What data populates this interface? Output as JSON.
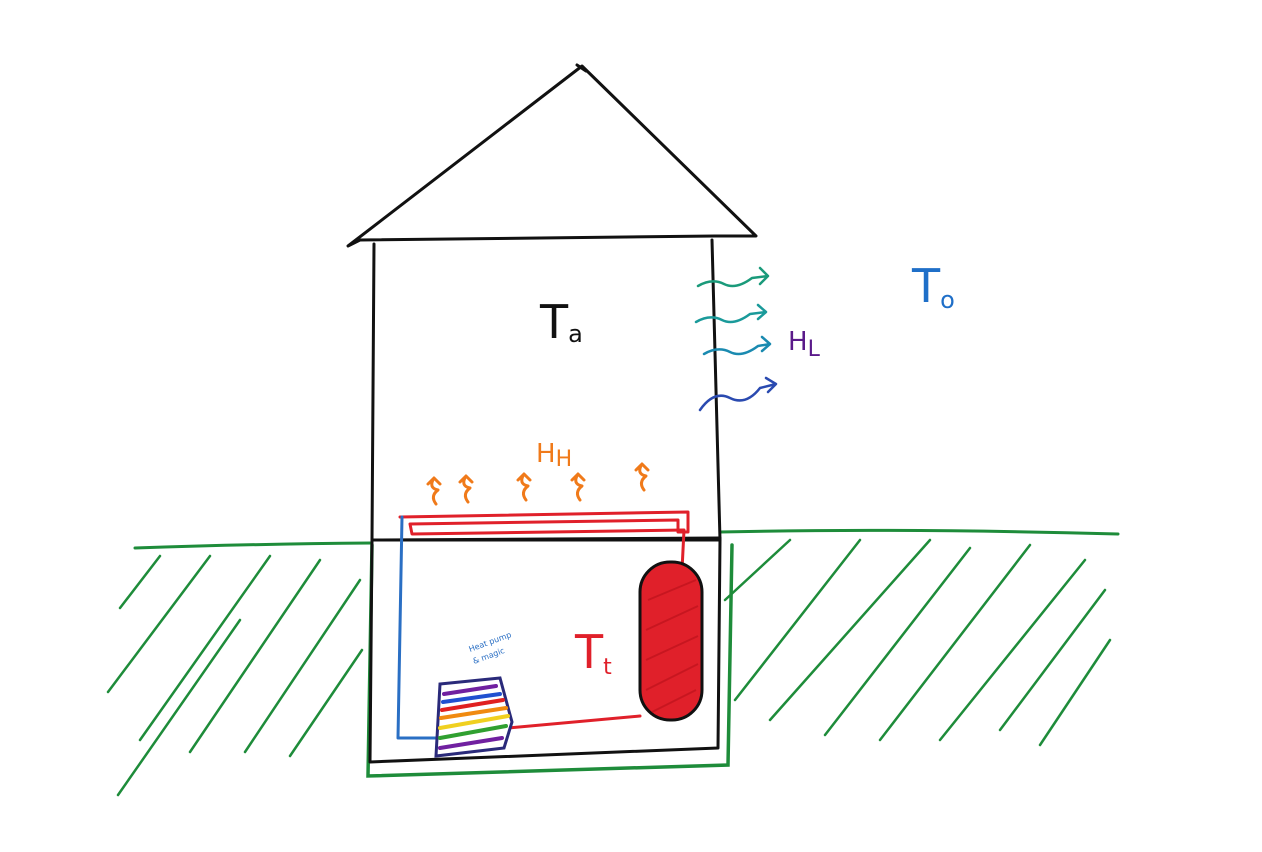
{
  "labels": {
    "indoor_temp": {
      "main": "T",
      "sub": "a"
    },
    "outdoor_temp": {
      "main": "T",
      "sub": "o"
    },
    "tank_temp": {
      "main": "T",
      "sub": "t"
    },
    "heat_loss": {
      "main": "H",
      "sub": "L"
    },
    "heat_supply": {
      "main": "H",
      "sub": "H"
    },
    "heat_pump_note": [
      "Heat pump",
      "& magic"
    ]
  },
  "colors": {
    "ink": "#111111",
    "ground": "#1e8c3a",
    "hot_pipe": "#e0202a",
    "cold_pipe": "#2a6fc4",
    "heat_arrows": "#f07a1a",
    "outdoor_label": "#1f6fc8",
    "loss_label": "#5a1a8a",
    "loss_waves": [
      "#1a9a7a",
      "#1a9a9a",
      "#1a8ab0",
      "#2a4ab0"
    ],
    "rainbow": [
      "#e02020",
      "#f08a10",
      "#f0d020",
      "#30a030",
      "#2050d0",
      "#7020a0"
    ]
  }
}
